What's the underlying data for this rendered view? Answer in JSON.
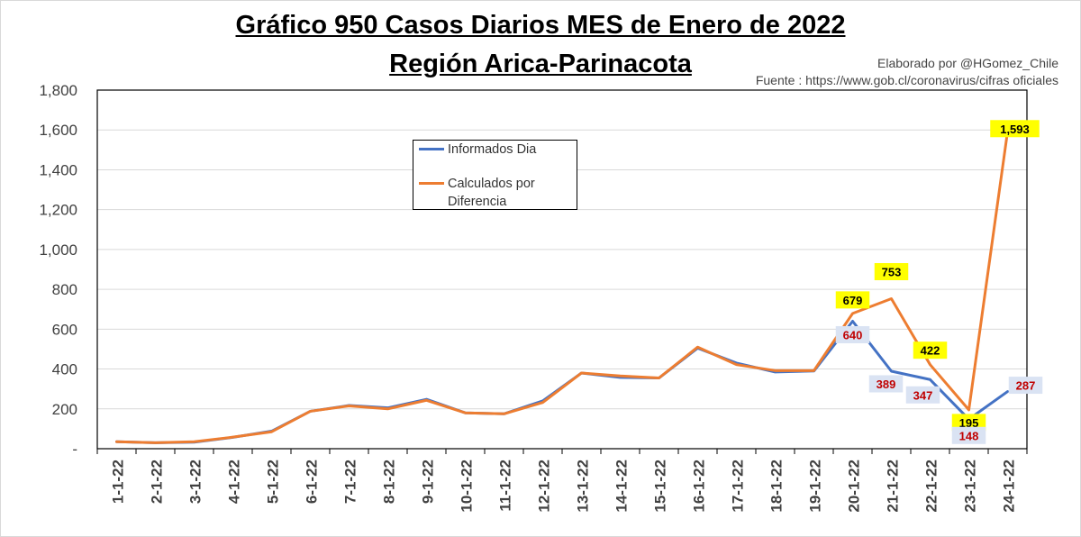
{
  "title": {
    "line1": "Gráfico 950 Casos Diarios MES de Enero de 2022",
    "line2": "Región Arica-Parinacota"
  },
  "credits": {
    "author": "Elaborado por @HGomez_Chile",
    "source": "Fuente  : https://www.gob.cl/coronavirus/cifras oficiales"
  },
  "colors": {
    "informados": "#4472C4",
    "calculados": "#ED7D31",
    "label_yellow": "#FFFF00",
    "label_blue": "#DAE3F3",
    "label_red_text": "#C00000",
    "grid": "#D9D9D9"
  },
  "chart_data": {
    "type": "line",
    "title": "Gráfico 950 Casos Diarios MES de Enero de 2022 Región Arica-Parinacota",
    "xlabel": "",
    "ylabel": "",
    "ylim": [
      0,
      1800
    ],
    "yticks": [
      0,
      200,
      400,
      600,
      800,
      1000,
      1200,
      1400,
      1600,
      1800
    ],
    "ytick_labels": [
      "-",
      "200",
      "400",
      "600",
      "800",
      "1,000",
      "1,200",
      "1,400",
      "1,600",
      "1,800"
    ],
    "grid": true,
    "legend_position": "top-center",
    "categories": [
      "1-1-22",
      "2-1-22",
      "3-1-22",
      "4-1-22",
      "5-1-22",
      "6-1-22",
      "7-1-22",
      "8-1-22",
      "9-1-22",
      "10-1-22",
      "11-1-22",
      "12-1-22",
      "13-1-22",
      "14-1-22",
      "15-1-22",
      "16-1-22",
      "17-1-22",
      "18-1-22",
      "19-1-22",
      "20-1-22",
      "21-1-22",
      "22-1-22",
      "23-1-22",
      "24-1-22"
    ],
    "series": [
      {
        "name": "Informados Dia",
        "color": "#4472C4",
        "values": [
          35,
          30,
          33,
          57,
          88,
          188,
          217,
          205,
          248,
          180,
          175,
          240,
          380,
          358,
          355,
          505,
          430,
          385,
          390,
          640,
          389,
          347,
          148,
          287
        ]
      },
      {
        "name": "Calculados por Diferencia",
        "color": "#ED7D31",
        "values": [
          35,
          30,
          35,
          58,
          85,
          188,
          215,
          200,
          243,
          180,
          175,
          232,
          380,
          365,
          355,
          510,
          422,
          392,
          392,
          679,
          753,
          422,
          195,
          1593
        ]
      }
    ],
    "data_labels": {
      "calculados": [
        {
          "index": 19,
          "text": "679"
        },
        {
          "index": 20,
          "text": "753"
        },
        {
          "index": 21,
          "text": "422"
        },
        {
          "index": 22,
          "text": "195"
        },
        {
          "index": 23,
          "text": "1,593"
        }
      ],
      "informados": [
        {
          "index": 19,
          "text": "640"
        },
        {
          "index": 20,
          "text": "389"
        },
        {
          "index": 21,
          "text": "347"
        },
        {
          "index": 22,
          "text": "148"
        },
        {
          "index": 23,
          "text": "287"
        }
      ]
    }
  }
}
